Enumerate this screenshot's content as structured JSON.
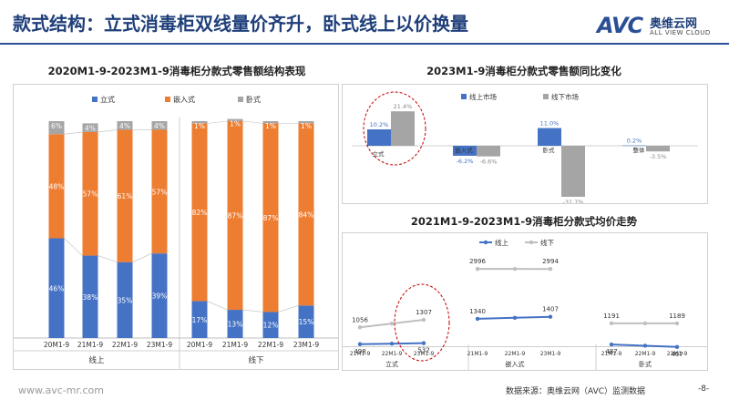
{
  "header": {
    "title": "款式结构：立式消毒柜双线量价齐升，卧式线上以价换量",
    "logo_text": "AVC",
    "logo_cn": "奥维云网",
    "logo_en": "ALL VIEW CLOUD"
  },
  "footer": {
    "url": "www.avc-mr.com",
    "source": "数据来源：奥维云网（AVC）监测数据",
    "page": "-8-"
  },
  "colors": {
    "blue": "#4472c4",
    "orange": "#ed7d31",
    "gray": "#a5a5a5",
    "line_gray": "#bfbfbf",
    "annotation": "#c00000"
  },
  "chart_data": [
    {
      "type": "bar",
      "stacked": true,
      "title": "2020M1-9-2023M1-9消毒柜分款式零售额结构表现",
      "legend": [
        "立式",
        "嵌入式",
        "卧式"
      ],
      "legend_position": "top",
      "groups": [
        {
          "name": "线上",
          "categories": [
            "20M1-9",
            "21M1-9",
            "22M1-9",
            "23M1-9"
          ]
        },
        {
          "name": "线下",
          "categories": [
            "20M1-9",
            "21M1-9",
            "22M1-9",
            "23M1-9"
          ]
        }
      ],
      "series": [
        {
          "name": "立式",
          "values": [
            46,
            38,
            35,
            39,
            17,
            13,
            12,
            15
          ],
          "labels": [
            "46%",
            "38%",
            "35%",
            "39%",
            "17%",
            "13%",
            "12%",
            "15%"
          ]
        },
        {
          "name": "嵌入式",
          "values": [
            48,
            57,
            61,
            57,
            82,
            87,
            87,
            84
          ],
          "labels": [
            "48%",
            "57%",
            "61%",
            "57%",
            "82%",
            "87%",
            "87%",
            "84%"
          ]
        },
        {
          "name": "卧式",
          "values": [
            6,
            4,
            4,
            4,
            1,
            1,
            1,
            1
          ],
          "labels": [
            "6%",
            "4%",
            "4%",
            "4%",
            "1%",
            "1%",
            "1%",
            "1%"
          ]
        }
      ],
      "ylim": [
        0,
        100
      ]
    },
    {
      "type": "bar",
      "title": "2023M1-9消毒柜分款式零售额同比变化",
      "legend": [
        "线上市场",
        "线下市场"
      ],
      "legend_position": "top",
      "categories": [
        "立式",
        "嵌入式",
        "卧式",
        "整体"
      ],
      "series": [
        {
          "name": "线上市场",
          "values": [
            10.2,
            -6.2,
            11.0,
            0.2
          ],
          "labels": [
            "10.2%",
            "-6.2%",
            "11.0%",
            "0.2%"
          ]
        },
        {
          "name": "线下市场",
          "values": [
            21.4,
            -6.6,
            -31.7,
            -3.5
          ],
          "labels": [
            "21.4%",
            "-6.6%",
            "-31.7%",
            "-3.5%"
          ]
        }
      ],
      "ylim": [
        -35,
        25
      ]
    },
    {
      "type": "line",
      "title": "2021M1-9-2023M1-9消毒柜分款式均价走势",
      "legend": [
        "线上",
        "线下"
      ],
      "legend_position": "top",
      "groups": [
        {
          "name": "立式",
          "x": [
            "21M1-9",
            "22M1-9",
            "23M1-9"
          ],
          "series": [
            {
              "name": "线上",
              "values": [
                498,
                null,
                532
              ]
            },
            {
              "name": "线下",
              "values": [
                1056,
                null,
                1307
              ]
            }
          ]
        },
        {
          "name": "嵌入式",
          "x": [
            "21M1-9",
            "22M1-9",
            "23M1-9"
          ],
          "series": [
            {
              "name": "线上",
              "values": [
                1340,
                null,
                1407
              ]
            },
            {
              "name": "线下",
              "values": [
                2996,
                null,
                2994
              ]
            }
          ]
        },
        {
          "name": "卧式",
          "x": [
            "21M1-9",
            "22M1-9",
            "23M1-9"
          ],
          "series": [
            {
              "name": "线上",
              "values": [
                487,
                null,
                407
              ]
            },
            {
              "name": "线下",
              "values": [
                1191,
                null,
                1189
              ]
            }
          ]
        }
      ]
    }
  ]
}
